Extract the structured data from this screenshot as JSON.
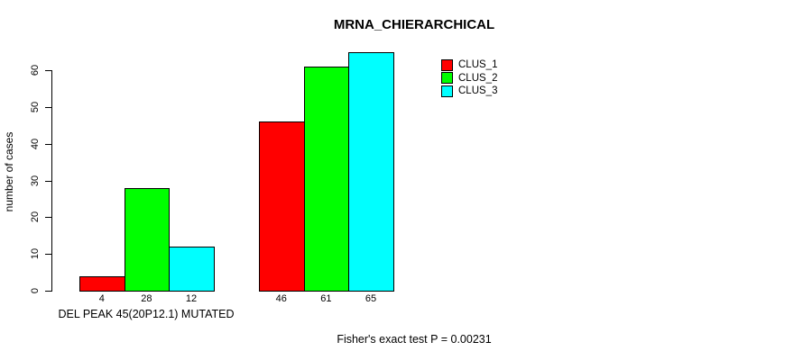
{
  "chart_data": {
    "type": "bar",
    "title": "MRNA_CHIERARCHICAL",
    "ylabel": "number of cases",
    "xlabel": "DEL PEAK 45(20P12.1) MUTATED",
    "ylim": [
      0,
      60
    ],
    "yticks": [
      0,
      10,
      20,
      30,
      40,
      50,
      60
    ],
    "grid": false,
    "legend_position": "top-right-of-plot",
    "categories": [
      "DEL PEAK 45(20P12.1) MUTATED",
      ""
    ],
    "series": [
      {
        "name": "CLUS_1",
        "color": "#ff0000",
        "values": [
          4,
          46
        ]
      },
      {
        "name": "CLUS_2",
        "color": "#00ff00",
        "values": [
          28,
          61
        ]
      },
      {
        "name": "CLUS_3",
        "color": "#00ffff",
        "values": [
          12,
          65
        ]
      }
    ],
    "bar_value_labels": [
      [
        4,
        28,
        12
      ],
      [
        46,
        61,
        65
      ]
    ],
    "annotation": "Fisher's exact test P = 0.00231"
  }
}
